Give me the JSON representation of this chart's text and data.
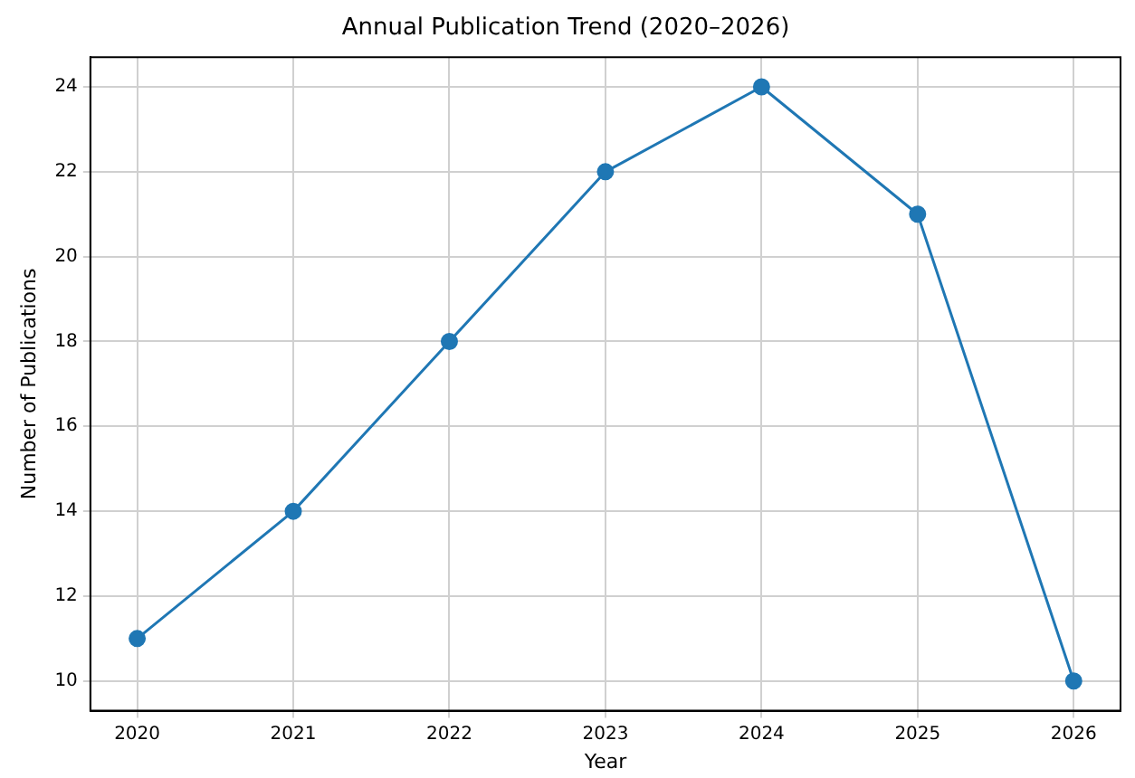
{
  "chart_data": {
    "type": "line",
    "title": "Annual Publication Trend (2020–2026)",
    "xlabel": "Year",
    "ylabel": "Number of Publications",
    "x": [
      2020,
      2021,
      2022,
      2023,
      2024,
      2025,
      2026
    ],
    "series": [
      {
        "color": "#1f77b4",
        "values": [
          11,
          14,
          18,
          22,
          24,
          21,
          10
        ]
      }
    ],
    "xlim": [
      2019.7,
      2026.3
    ],
    "xticks": [
      2020,
      2021,
      2022,
      2023,
      2024,
      2025,
      2026
    ],
    "ylim": [
      9.3,
      24.7
    ],
    "yticks": [
      10,
      12,
      14,
      16,
      18,
      20,
      22,
      24
    ],
    "grid": true,
    "marker": "circle",
    "line_style": "solid",
    "legend": false
  }
}
